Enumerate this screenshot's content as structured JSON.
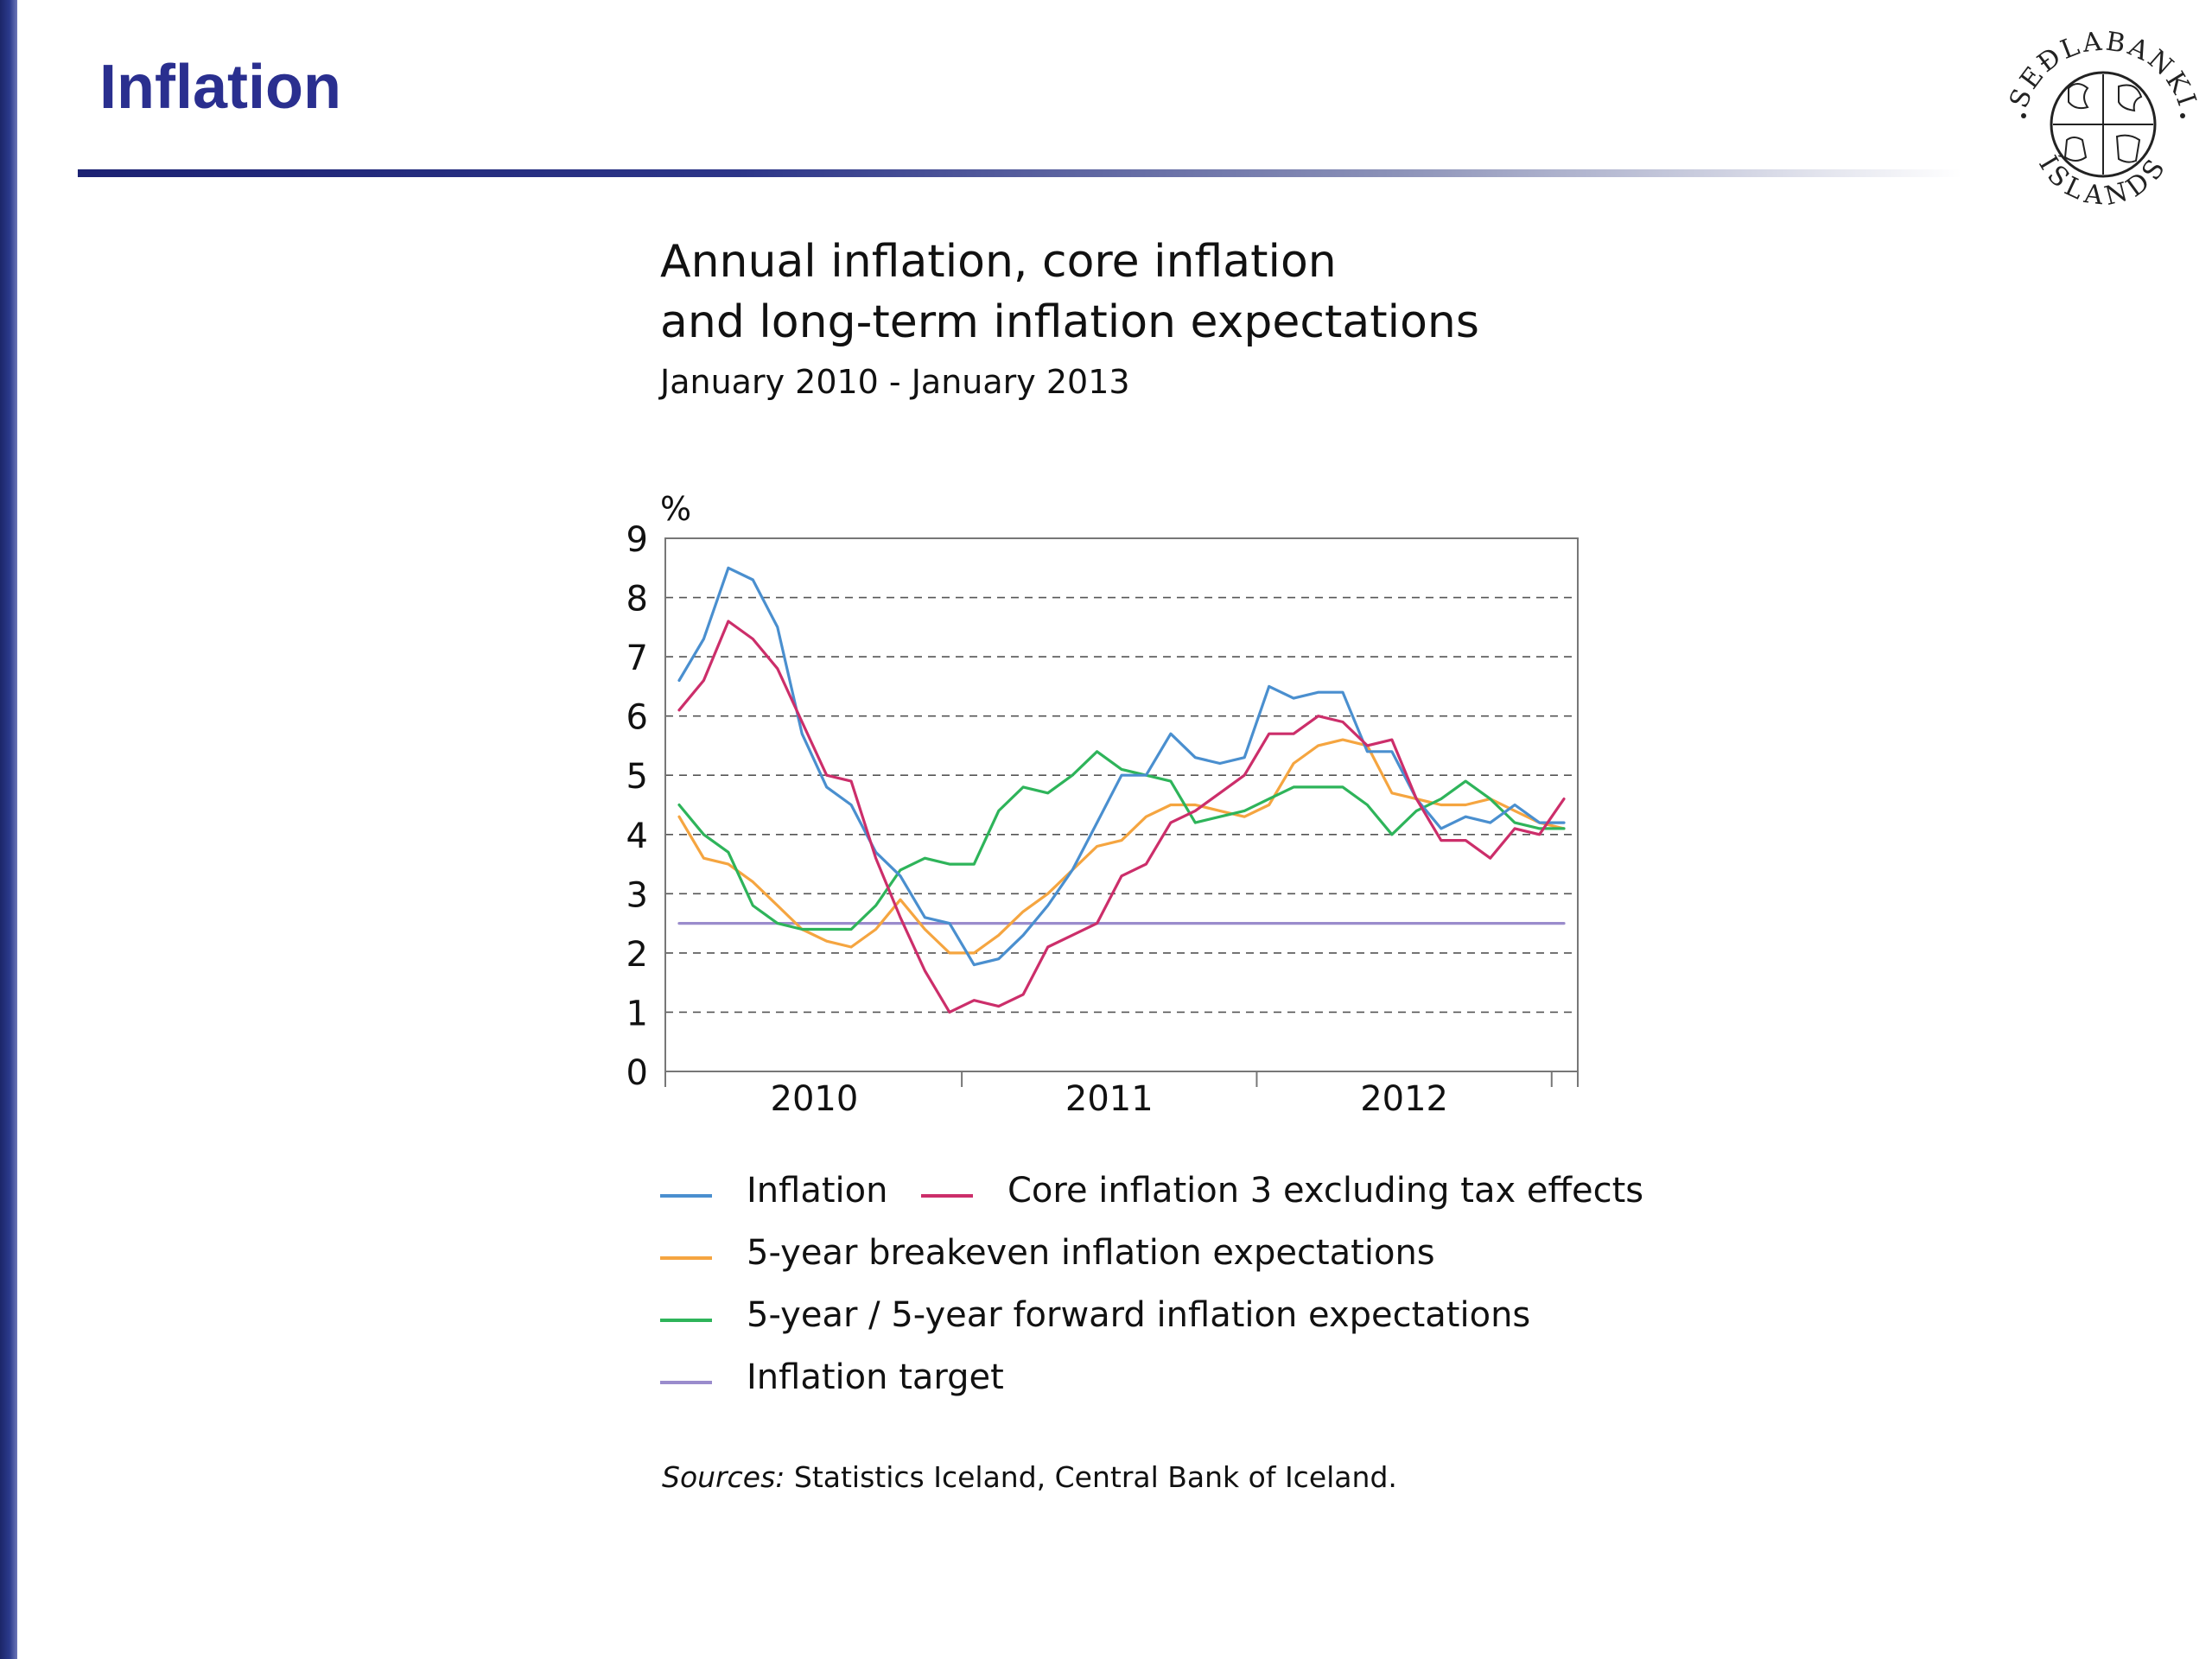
{
  "slide": {
    "title": "Inflation"
  },
  "logo": {
    "name": "sedlabanki-islands-seal",
    "text_top": "SEÐLABANKI",
    "text_bottom": "ÍSLANDS"
  },
  "chart": {
    "title_line1": "Annual inflation, core inflation",
    "title_line2": "and long-term inflation expectations",
    "subtitle": "January 2010 - January 2013",
    "y_unit": "%",
    "sources_label": "Sources:",
    "sources_text": " Statistics Iceland, Central Bank of Iceland."
  },
  "colors": {
    "title": "#2a2f8f",
    "inflation": "#4a8fcf",
    "core": "#cc2e6a",
    "breakeven": "#f5a540",
    "forward": "#2eb45a",
    "target": "#9a8ccc",
    "grid": "#555555"
  },
  "chart_data": {
    "type": "line",
    "title": "Annual inflation, core inflation and long-term inflation expectations",
    "subtitle": "January 2010 - January 2013",
    "ylabel": "%",
    "ylim": [
      0,
      9
    ],
    "yticks": [
      0,
      1,
      2,
      3,
      4,
      5,
      6,
      7,
      8,
      9
    ],
    "x_tick_labels": [
      "2010",
      "2011",
      "2012"
    ],
    "x_start": "January 2010",
    "x_end": "January 2013",
    "x": [
      "2010-01",
      "2010-02",
      "2010-03",
      "2010-04",
      "2010-05",
      "2010-06",
      "2010-07",
      "2010-08",
      "2010-09",
      "2010-10",
      "2010-11",
      "2010-12",
      "2011-01",
      "2011-02",
      "2011-03",
      "2011-04",
      "2011-05",
      "2011-06",
      "2011-07",
      "2011-08",
      "2011-09",
      "2011-10",
      "2011-11",
      "2011-12",
      "2012-01",
      "2012-02",
      "2012-03",
      "2012-04",
      "2012-05",
      "2012-06",
      "2012-07",
      "2012-08",
      "2012-09",
      "2012-10",
      "2012-11",
      "2012-12",
      "2013-01"
    ],
    "grid": true,
    "legend_position": "bottom",
    "series": [
      {
        "name": "Inflation",
        "color": "#4a8fcf",
        "values": [
          6.6,
          7.3,
          8.5,
          8.3,
          7.5,
          5.7,
          4.8,
          4.5,
          3.7,
          3.3,
          2.6,
          2.5,
          1.8,
          1.9,
          2.3,
          2.8,
          3.4,
          4.2,
          5.0,
          5.0,
          5.7,
          5.3,
          5.2,
          5.3,
          6.5,
          6.3,
          6.4,
          6.4,
          5.4,
          5.4,
          4.6,
          4.1,
          4.3,
          4.2,
          4.5,
          4.2,
          4.2
        ]
      },
      {
        "name": "Core inflation 3 excluding tax effects",
        "color": "#cc2e6a",
        "values": [
          6.1,
          6.6,
          7.6,
          7.3,
          6.8,
          5.9,
          5.0,
          4.9,
          3.6,
          2.6,
          1.7,
          1.0,
          1.2,
          1.1,
          1.3,
          2.1,
          2.3,
          2.5,
          3.3,
          3.5,
          4.2,
          4.4,
          4.7,
          5.0,
          5.7,
          5.7,
          6.0,
          5.9,
          5.5,
          5.6,
          4.6,
          3.9,
          3.9,
          3.6,
          4.1,
          4.0,
          4.6
        ]
      },
      {
        "name": "5-year breakeven inflation expectations",
        "color": "#f5a540",
        "values": [
          4.3,
          3.6,
          3.5,
          3.2,
          2.8,
          2.4,
          2.2,
          2.1,
          2.4,
          2.9,
          2.4,
          2.0,
          2.0,
          2.3,
          2.7,
          3.0,
          3.4,
          3.8,
          3.9,
          4.3,
          4.5,
          4.5,
          4.4,
          4.3,
          4.5,
          5.2,
          5.5,
          5.6,
          5.5,
          4.7,
          4.6,
          4.5,
          4.5,
          4.6,
          4.4,
          4.2,
          4.1
        ]
      },
      {
        "name": "5-year / 5-year forward inflation expectations",
        "color": "#2eb45a",
        "values": [
          4.5,
          4.0,
          3.7,
          2.8,
          2.5,
          2.4,
          2.4,
          2.4,
          2.8,
          3.4,
          3.6,
          3.5,
          3.5,
          4.4,
          4.8,
          4.7,
          5.0,
          5.4,
          5.1,
          5.0,
          4.9,
          4.2,
          4.3,
          4.4,
          4.6,
          4.8,
          4.8,
          4.8,
          4.5,
          4.0,
          4.4,
          4.6,
          4.9,
          4.6,
          4.2,
          4.1,
          4.1
        ]
      },
      {
        "name": "Inflation target",
        "color": "#9a8ccc",
        "values": [
          2.5,
          2.5,
          2.5,
          2.5,
          2.5,
          2.5,
          2.5,
          2.5,
          2.5,
          2.5,
          2.5,
          2.5,
          2.5,
          2.5,
          2.5,
          2.5,
          2.5,
          2.5,
          2.5,
          2.5,
          2.5,
          2.5,
          2.5,
          2.5,
          2.5,
          2.5,
          2.5,
          2.5,
          2.5,
          2.5,
          2.5,
          2.5,
          2.5,
          2.5,
          2.5,
          2.5,
          2.5
        ]
      }
    ]
  },
  "legend": [
    {
      "label": "Inflation"
    },
    {
      "label": "Core inflation 3 excluding tax effects"
    },
    {
      "label": "5-year breakeven inflation expectations"
    },
    {
      "label": "5-year / 5-year forward inflation expectations"
    },
    {
      "label": "Inflation target"
    }
  ]
}
